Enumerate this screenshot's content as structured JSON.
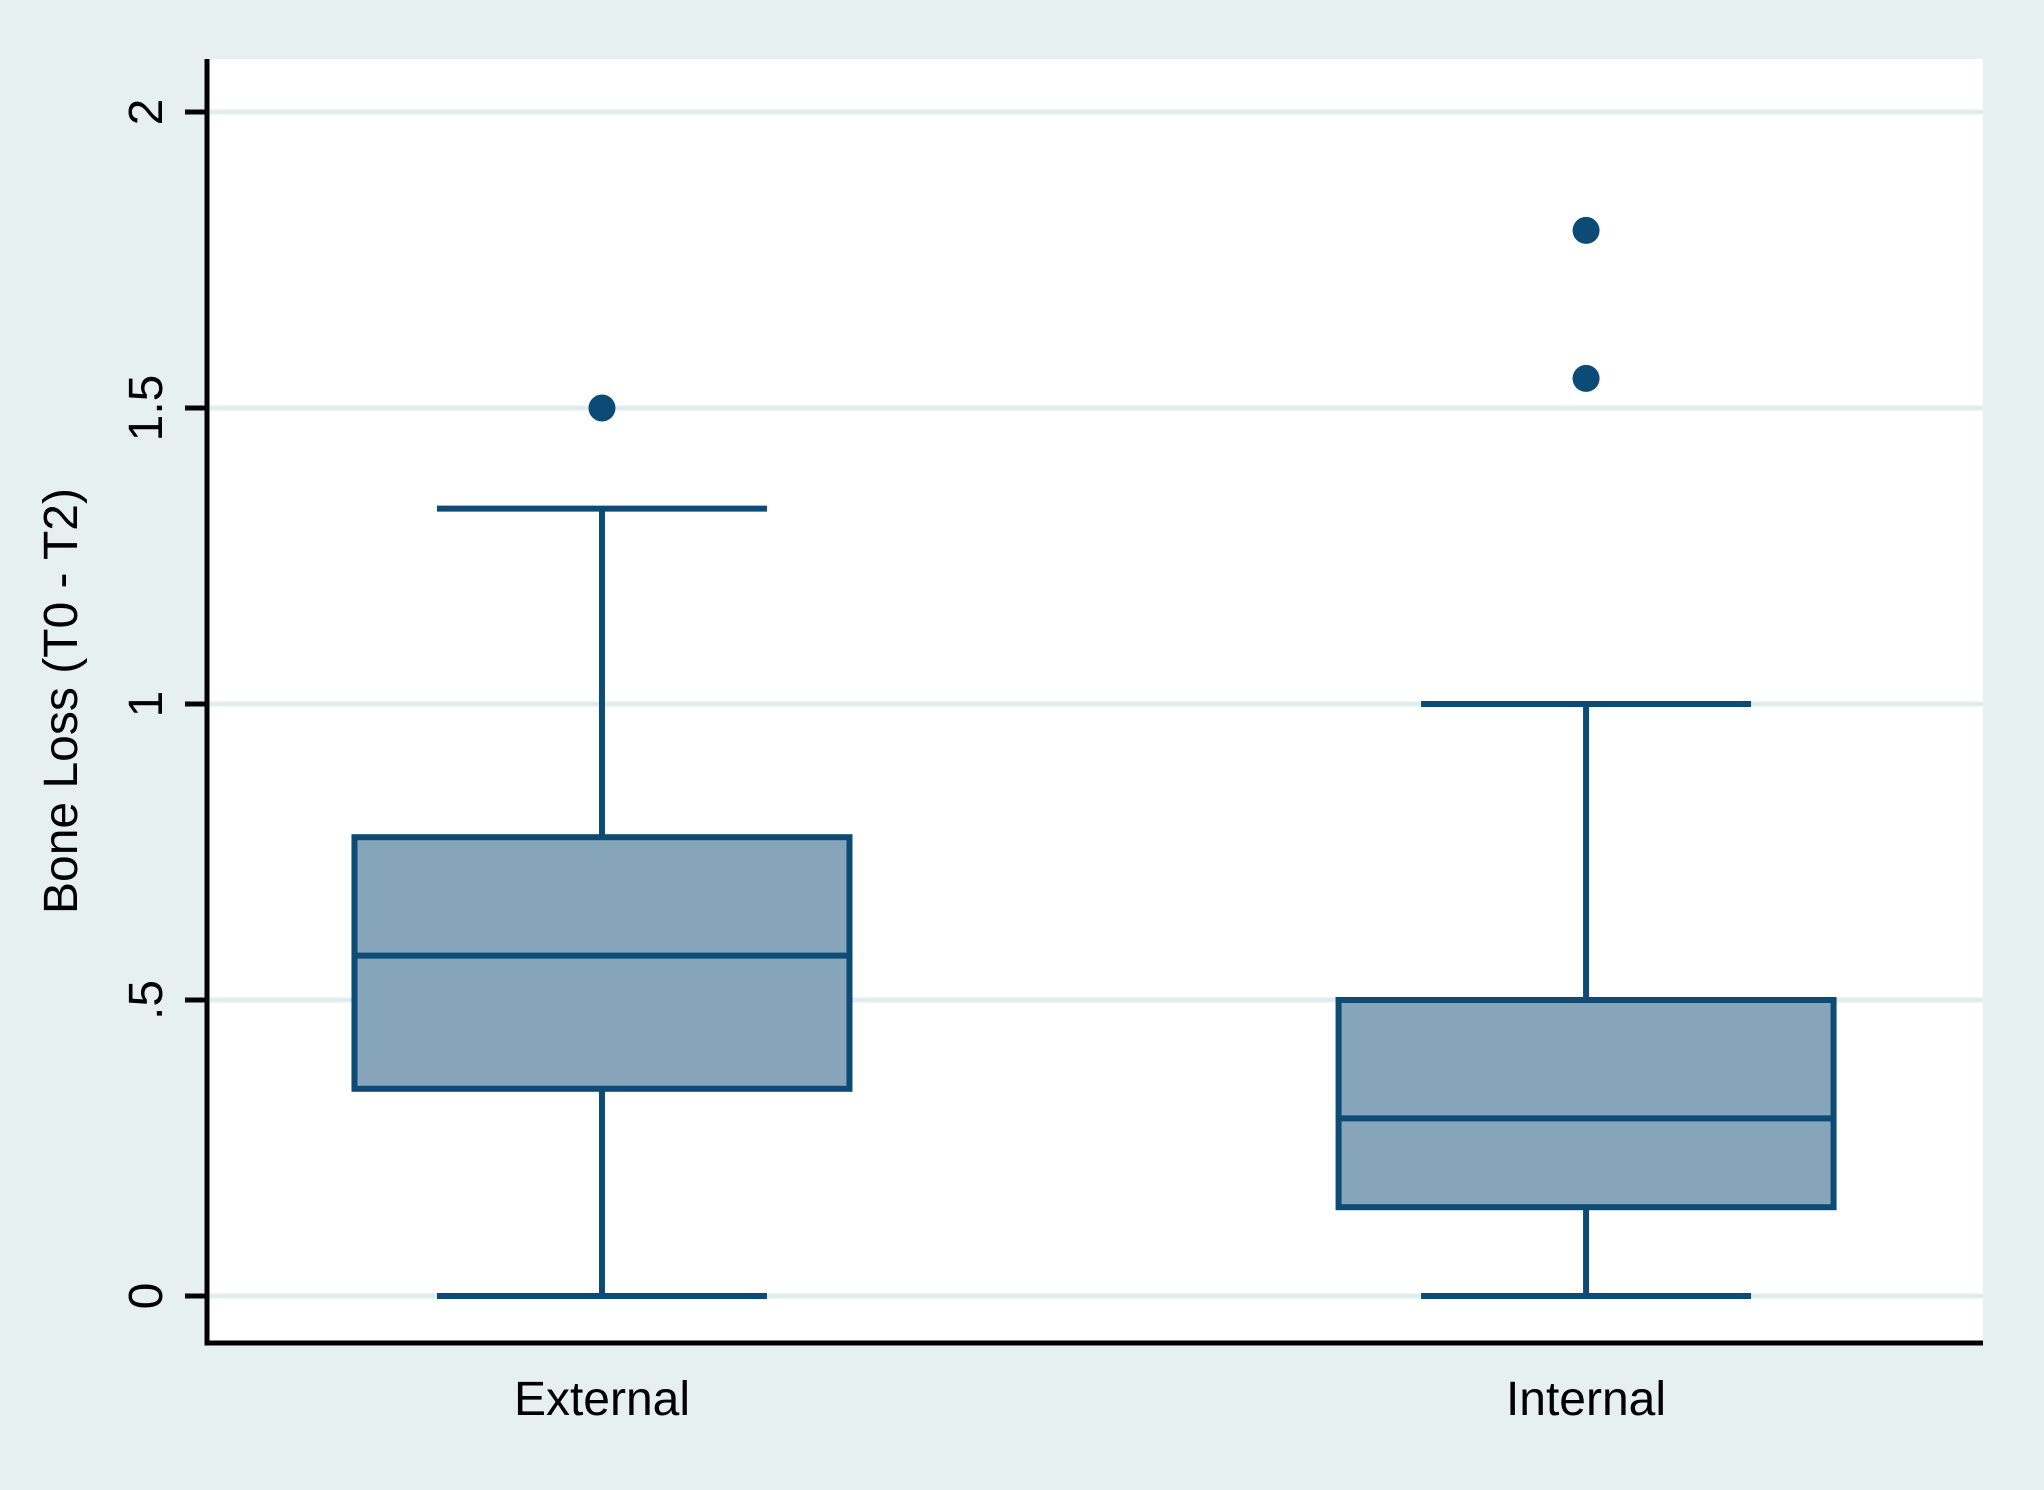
{
  "chart_data": {
    "type": "box",
    "title": "",
    "xlabel": "",
    "ylabel": "Bone Loss (T0 - T2)",
    "categories": [
      "External",
      "Internal"
    ],
    "y_ticks": [
      {
        "value": 0,
        "label": "0"
      },
      {
        "value": 0.5,
        "label": ".5"
      },
      {
        "value": 1,
        "label": "1"
      },
      {
        "value": 1.5,
        "label": "1.5"
      },
      {
        "value": 2,
        "label": "2"
      }
    ],
    "ylim": [
      -0.08,
      2.09
    ],
    "grid": true,
    "legend": false,
    "series": [
      {
        "category": "External",
        "lower_whisker": 0,
        "q1": 0.35,
        "median": 0.575,
        "q3": 0.775,
        "upper_whisker": 1.33,
        "outliers": [
          1.5
        ]
      },
      {
        "category": "Internal",
        "lower_whisker": 0,
        "q1": 0.15,
        "median": 0.3,
        "q3": 0.5,
        "upper_whisker": 1.0,
        "outliers": [
          1.55,
          1.8
        ]
      }
    ]
  },
  "colors": {
    "background": "#e6f0ef",
    "plot_background": "#ffffff",
    "gridline": "#dfedeb",
    "box_fill": "#87a5ba",
    "box_stroke": "#0b4b75",
    "whisker": "#0b4b75",
    "outlier": "#0b4b75",
    "axis": "#000000",
    "text": "#000000"
  }
}
